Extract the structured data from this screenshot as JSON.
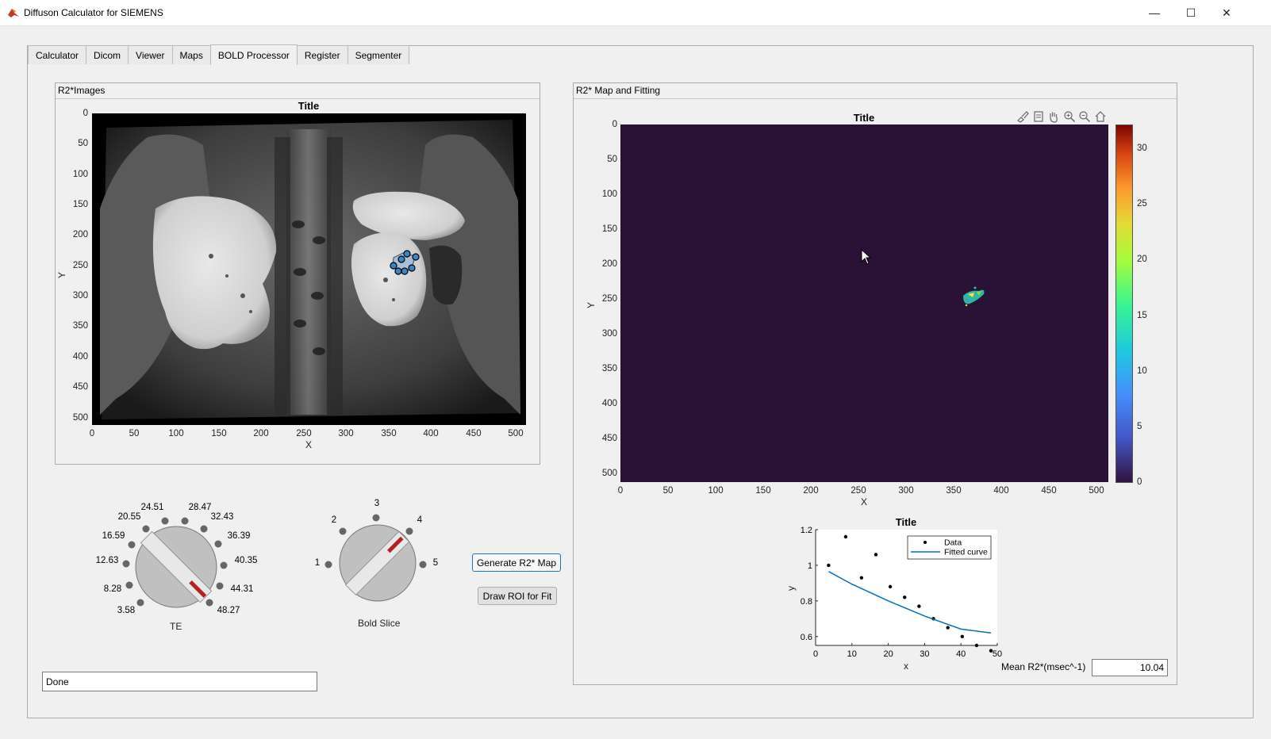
{
  "window": {
    "title": "Diffuson Calculator for SIEMENS"
  },
  "tabs": [
    "Calculator",
    "Dicom",
    "Viewer",
    "Maps",
    "BOLD Processor",
    "Register",
    "Segmenter"
  ],
  "active_tab": "BOLD Processor",
  "left_panel": {
    "title": "R2*Images",
    "axes_title": "Title",
    "xlabel": "X",
    "ylabel": "Y",
    "xticks": [
      "0",
      "50",
      "100",
      "150",
      "200",
      "250",
      "300",
      "350",
      "400",
      "450",
      "500"
    ],
    "yticks": [
      "0",
      "50",
      "100",
      "150",
      "200",
      "250",
      "300",
      "350",
      "400",
      "450",
      "500"
    ]
  },
  "right_panel": {
    "title": "R2* Map and Fitting",
    "map_title": "Title",
    "xlabel": "X",
    "ylabel": "Y",
    "xticks": [
      "0",
      "50",
      "100",
      "150",
      "200",
      "250",
      "300",
      "350",
      "400",
      "450",
      "500"
    ],
    "yticks": [
      "0",
      "50",
      "100",
      "150",
      "200",
      "250",
      "300",
      "350",
      "400",
      "450",
      "500"
    ],
    "colorbar_ticks": [
      "30",
      "25",
      "20",
      "15",
      "10",
      "5",
      "0"
    ],
    "map_background": "#2a1237",
    "toolbar_icons": [
      "brush-icon",
      "datatip-icon",
      "pan-icon",
      "zoom-in-icon",
      "zoom-out-icon",
      "home-icon"
    ]
  },
  "te_knob": {
    "label": "TE",
    "values": [
      "3.58",
      "8.28",
      "12.63",
      "16.59",
      "20.55",
      "24.51",
      "28.47",
      "32.43",
      "36.39",
      "40.35",
      "44.31",
      "48.27"
    ],
    "selected": "3.58"
  },
  "slice_knob": {
    "label": "Bold Slice",
    "values": [
      "1",
      "2",
      "3",
      "4",
      "5"
    ],
    "selected": "4"
  },
  "buttons": {
    "generate": "Generate R2* Map",
    "draw_roi": "Draw ROI for Fit"
  },
  "status": {
    "value": "Done"
  },
  "mean_r2": {
    "label": "Mean R2*(msec^-1)",
    "value": "10.04"
  },
  "chart_data": {
    "type": "scatter",
    "title": "Title",
    "xlabel": "x",
    "ylabel": "y",
    "xlim": [
      0,
      50
    ],
    "ylim": [
      0.55,
      1.2
    ],
    "xticks": [
      "0",
      "10",
      "20",
      "30",
      "40",
      "50"
    ],
    "yticks": [
      "0.6",
      "0.8",
      "1",
      "1.2"
    ],
    "legend_position": "top-right",
    "series": [
      {
        "name": "Data",
        "kind": "points",
        "x": [
          3.58,
          8.28,
          12.63,
          16.59,
          20.55,
          24.51,
          28.47,
          32.43,
          36.39,
          40.35,
          44.31,
          48.27
        ],
        "y": [
          1.0,
          1.16,
          0.93,
          1.06,
          0.88,
          0.82,
          0.77,
          0.7,
          0.65,
          0.6,
          0.55,
          0.52
        ]
      },
      {
        "name": "Fitted curve",
        "kind": "line",
        "color": "#0072bd",
        "x": [
          3.58,
          10,
          20,
          30,
          40,
          48.27
        ],
        "y": [
          0.965,
          0.894,
          0.8,
          0.715,
          0.642,
          0.62
        ]
      }
    ]
  }
}
